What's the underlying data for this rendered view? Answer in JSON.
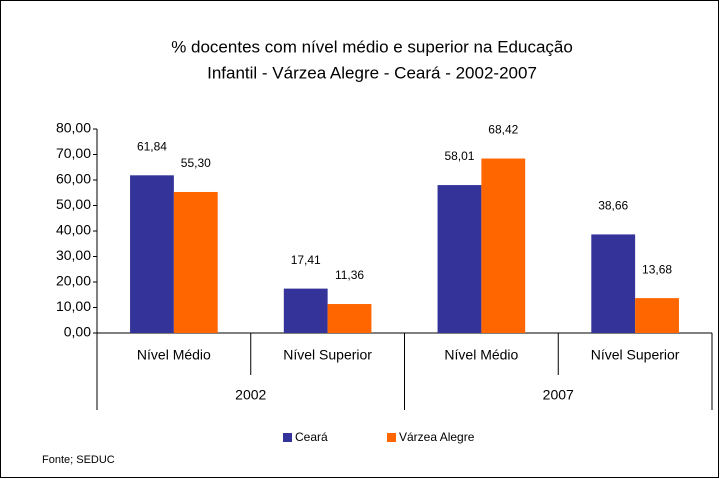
{
  "chart_data": {
    "type": "bar",
    "title": [
      "% docentes com nível médio e superior na  Educação",
      "Infantil - Várzea Alegre  - Ceará - 2002-2007"
    ],
    "categories": [
      "Nível Médio",
      "Nível Superior",
      "Nível Médio",
      "Nível Superior"
    ],
    "groups": [
      "2002",
      "2007"
    ],
    "series": [
      {
        "name": "Ceará",
        "color": "#333399",
        "values": [
          61.84,
          17.41,
          58.01,
          38.66
        ],
        "value_labels": [
          "61,84",
          "17,41",
          "58,01",
          "38,66"
        ]
      },
      {
        "name": "Várzea Alegre",
        "color": "#ff6600",
        "values": [
          55.3,
          11.36,
          68.42,
          13.68
        ],
        "value_labels": [
          "55,30",
          "11,36",
          "68,42",
          "13,68"
        ]
      }
    ],
    "ylim": [
      0,
      80
    ],
    "yticks": [
      {
        "value": 0,
        "label": "0,00"
      },
      {
        "value": 10,
        "label": "10,00"
      },
      {
        "value": 20,
        "label": "20,00"
      },
      {
        "value": 30,
        "label": "30,00"
      },
      {
        "value": 40,
        "label": "40,00"
      },
      {
        "value": 50,
        "label": "50,00"
      },
      {
        "value": 60,
        "label": "60,00"
      },
      {
        "value": 70,
        "label": "70,00"
      },
      {
        "value": 80,
        "label": "80,00"
      }
    ],
    "source": "Fonte; SEDUC"
  }
}
